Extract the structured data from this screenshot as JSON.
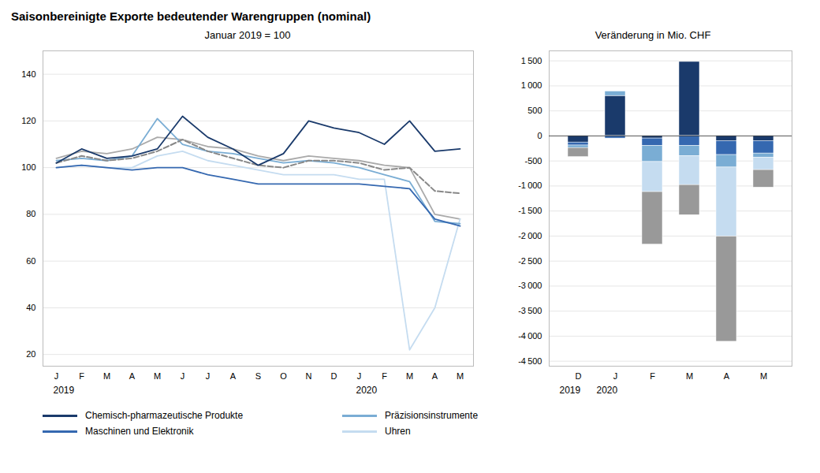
{
  "title": "Saisonbereinigte Exporte bedeutender Warengruppen (nominal)",
  "chart_data": [
    {
      "type": "line",
      "subtitle": "Januar 2019 = 100",
      "categories": [
        "J",
        "F",
        "M",
        "A",
        "M",
        "J",
        "J",
        "A",
        "S",
        "O",
        "N",
        "D",
        "J",
        "F",
        "M",
        "A",
        "M"
      ],
      "series": [
        {
          "color": "#aaaaaa",
          "line_style": "solid",
          "values": [
            104,
            107,
            106,
            108,
            113,
            112,
            109,
            108,
            105,
            103,
            105,
            104,
            103,
            101,
            100,
            80,
            78
          ]
        },
        {
          "name": "Uhren",
          "color": "#c5dcf0",
          "line_style": "solid",
          "values": [
            100,
            101,
            100,
            100,
            105,
            107,
            103,
            101,
            99,
            97,
            97,
            97,
            95,
            95,
            22,
            40,
            78
          ]
        },
        {
          "name": "Präzisionsinstrumente",
          "color": "#7aadd4",
          "line_style": "solid",
          "values": [
            103,
            104,
            103,
            105,
            121,
            110,
            107,
            106,
            104,
            102,
            103,
            102,
            100,
            97,
            94,
            77,
            76
          ]
        },
        {
          "name": "Maschinen und Elektronik",
          "color": "#3568b0",
          "line_style": "solid",
          "values": [
            100,
            101,
            100,
            99,
            100,
            100,
            97,
            95,
            93,
            93,
            93,
            93,
            93,
            92,
            91,
            78,
            75
          ]
        },
        {
          "color": "#888888",
          "line_style": "dashed",
          "values": [
            102,
            105,
            103,
            104,
            107,
            112,
            107,
            104,
            101,
            100,
            103,
            103,
            102,
            99,
            100,
            90,
            89
          ]
        },
        {
          "name": "Chemisch-pharmazeutische Produkte",
          "color": "#1a3a6b",
          "line_style": "solid",
          "values": [
            102,
            108,
            104,
            105,
            108,
            122,
            113,
            108,
            101,
            106,
            120,
            117,
            115,
            110,
            120,
            107,
            108
          ]
        }
      ],
      "ylim": [
        15,
        150
      ],
      "yticks": [
        20,
        40,
        60,
        80,
        100,
        120,
        140
      ],
      "grid": true,
      "legend": "bottom",
      "annotations": [
        {
          "text": "2019",
          "x": 0
        },
        {
          "text": "2020",
          "x": 12
        }
      ]
    },
    {
      "type": "bar",
      "stacked": true,
      "subtitle": "Veränderung in Mio. CHF",
      "categories": [
        "D",
        "J",
        "F",
        "M",
        "A",
        "M"
      ],
      "series": [
        {
          "color": "#1a3a6b",
          "values": [
            -130,
            800,
            -50,
            1480,
            -100,
            -100
          ]
        },
        {
          "color": "#3568b0",
          "values": [
            -60,
            -50,
            -150,
            -200,
            -280,
            -250
          ]
        },
        {
          "color": "#7aadd4",
          "values": [
            -50,
            90,
            -320,
            -200,
            -250,
            -80
          ]
        },
        {
          "color": "#c5dcf0",
          "values": [
            0,
            0,
            -600,
            -580,
            -1380,
            -250
          ]
        },
        {
          "color": "#999999",
          "values": [
            -180,
            0,
            -1050,
            -600,
            -2100,
            -350
          ]
        }
      ],
      "ylim": [
        -4600,
        1700
      ],
      "yticks": [
        {
          "value": -4500,
          "label": "-4 500"
        },
        {
          "value": -4000,
          "label": "-4 000"
        },
        {
          "value": -3500,
          "label": "-3 500"
        },
        {
          "value": -3000,
          "label": "-3 000"
        },
        {
          "value": -2500,
          "label": "-2 500"
        },
        {
          "value": -2000,
          "label": "-2 000"
        },
        {
          "value": -1500,
          "label": "-1 500"
        },
        {
          "value": -1000,
          "label": "-1 000"
        },
        -500,
        0,
        500,
        {
          "value": 1000,
          "label": "1 000"
        },
        {
          "value": 1500,
          "label": "1 500"
        }
      ],
      "grid": true,
      "annotations": [
        {
          "text": "2019",
          "x": 0
        },
        {
          "text": "2020",
          "x": 1
        }
      ]
    }
  ]
}
